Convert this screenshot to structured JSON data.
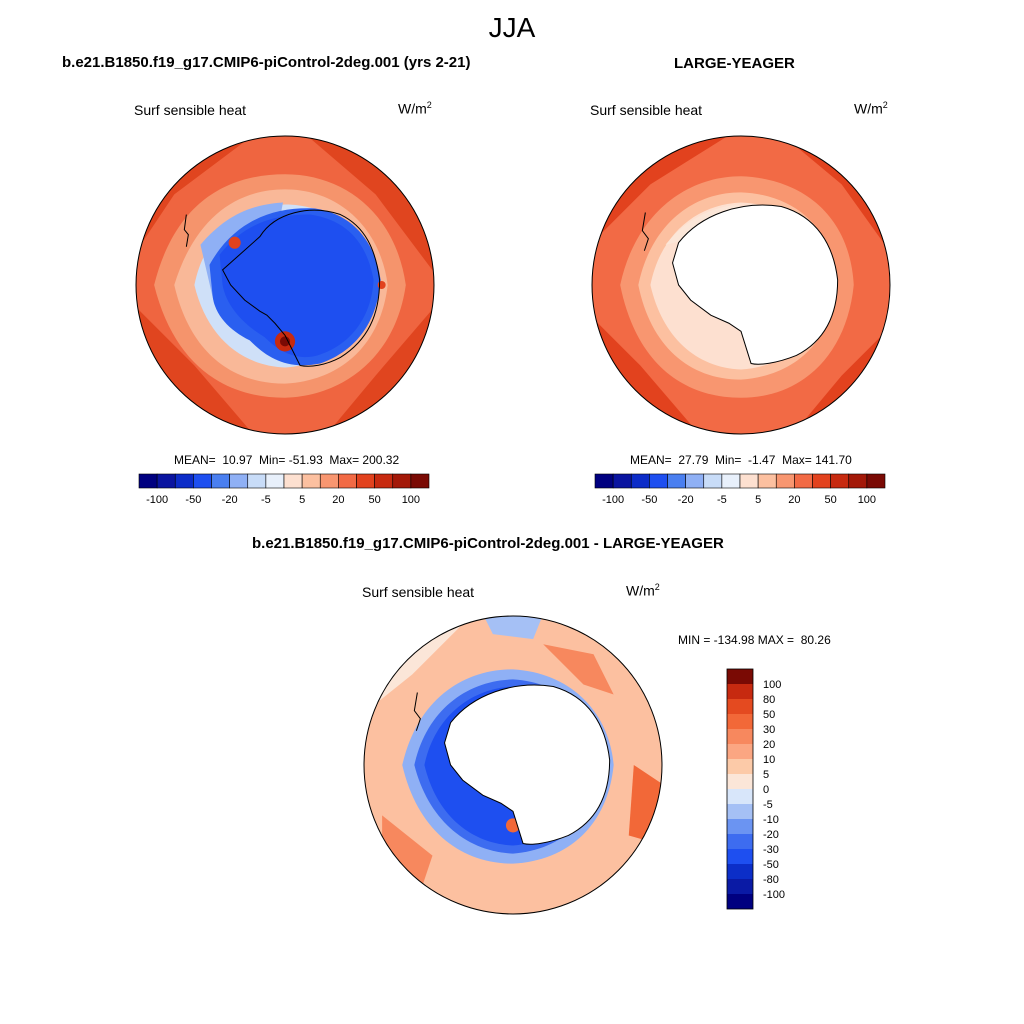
{
  "title": "JJA",
  "panels": [
    {
      "title": "b.e21.B1850.f19_g17.CMIP6-piControl-2deg.001 (yrs 2-21)",
      "variable": "Surf sensible heat",
      "units_base": "W/m",
      "units_exp": "2",
      "stats": "MEAN=  10.97  Min= -51.93  Max= 200.32"
    },
    {
      "title": "LARGE-YEAGER",
      "variable": "Surf sensible heat",
      "units_base": "W/m",
      "units_exp": "2",
      "stats": "MEAN=  27.79  Min=  -1.47  Max= 141.70"
    },
    {
      "title": "b.e21.B1850.f19_g17.CMIP6-piControl-2deg.001 - LARGE-YEAGER",
      "variable": "Surf sensible heat",
      "units_base": "W/m",
      "units_exp": "2",
      "stats": "MIN = -134.98 MAX =  80.26"
    }
  ],
  "colorbar_top": {
    "colors": [
      "#000080",
      "#0a14a0",
      "#0c2cc8",
      "#1e4ff0",
      "#4a7ff0",
      "#8fb0f5",
      "#c8dcf8",
      "#e8f0fb",
      "#fde0d0",
      "#fcc0a0",
      "#f89670",
      "#f26a45",
      "#e2421e",
      "#c72a10",
      "#a31808",
      "#7a0a04"
    ],
    "tick_labels": [
      "-100",
      "-50",
      "-20",
      "-5",
      "5",
      "20",
      "50",
      "100"
    ]
  },
  "colorbar_diff": {
    "colors": [
      "#000080",
      "#0a1aa5",
      "#0c2ec8",
      "#1e4ff0",
      "#3d6cf0",
      "#6b94f2",
      "#a5c0f5",
      "#d8e6fa",
      "#fbe6d8",
      "#fccaa8",
      "#fba682",
      "#f7885e",
      "#f26838",
      "#e44a20",
      "#c72a10",
      "#7a0a04"
    ],
    "tick_labels": [
      "100",
      "80",
      "50",
      "30",
      "20",
      "10",
      "5",
      "0",
      "-5",
      "-10",
      "-20",
      "-30",
      "-50",
      "-80",
      "-100"
    ]
  }
}
